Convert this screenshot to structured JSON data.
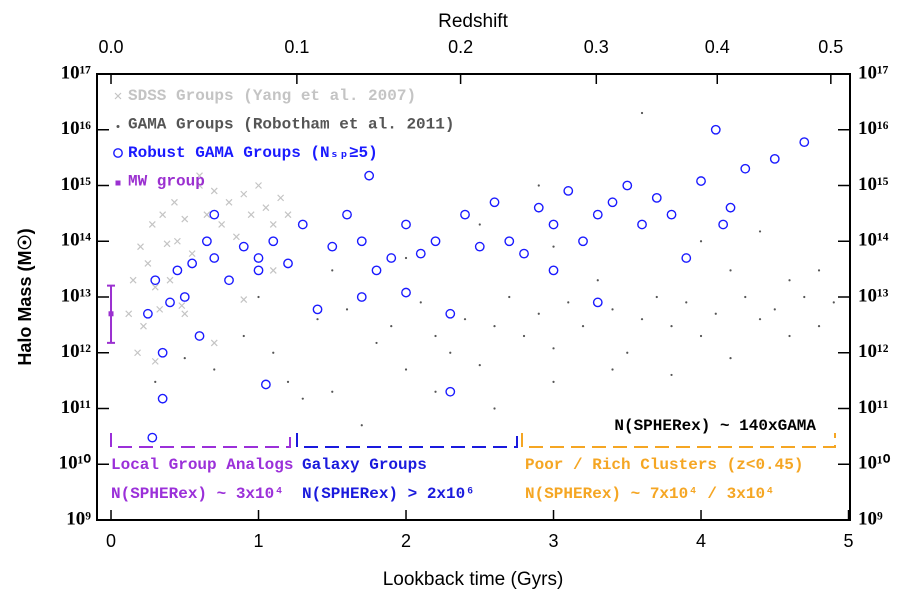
{
  "chart_data": {
    "type": "scatter",
    "x2_label": "Redshift",
    "x_label": "Lookback time (Gyrs)",
    "y_label": "Halo Mass (M☉)",
    "yscale": "log",
    "legend": "upper left",
    "xlim": [
      -0.095,
      5.01
    ],
    "ylim": [
      1000000000.0,
      1e+17
    ],
    "xticks": [
      0,
      1,
      2,
      3,
      4,
      5
    ],
    "x2ticks": [
      {
        "value": 0,
        "label": "0.0"
      },
      {
        "value": 1.26,
        "label": "0.1"
      },
      {
        "value": 2.37,
        "label": "0.2"
      },
      {
        "value": 3.29,
        "label": "0.3"
      },
      {
        "value": 4.11,
        "label": "0.4"
      },
      {
        "value": 4.88,
        "label": "0.5"
      }
    ],
    "yticks": [
      {
        "value": 1000000000.0,
        "label": "10⁹"
      },
      {
        "value": 10000000000.0,
        "label": "10¹⁰"
      },
      {
        "value": 100000000000.0,
        "label": "10¹¹"
      },
      {
        "value": 1000000000000.0,
        "label": "10¹²"
      },
      {
        "value": 10000000000000.0,
        "label": "10¹³"
      },
      {
        "value": 100000000000000.0,
        "label": "10¹⁴"
      },
      {
        "value": 1000000000000000.0,
        "label": "10¹⁵"
      },
      {
        "value": 1e+16,
        "label": "10¹⁶"
      },
      {
        "value": 1e+17,
        "label": "10¹⁷"
      }
    ],
    "series": [
      {
        "name": "SDSS Groups (Yang et al. 2007)",
        "color": "#c4c4c4",
        "marker": "cross",
        "x": [
          0.12,
          0.15,
          0.18,
          0.2,
          0.22,
          0.25,
          0.28,
          0.3,
          0.33,
          0.35,
          0.38,
          0.4,
          0.43,
          0.45,
          0.48,
          0.5,
          0.55,
          0.6,
          0.65,
          0.7,
          0.75,
          0.8,
          0.85,
          0.9,
          0.95,
          1.0,
          1.05,
          1.1,
          1.15,
          1.2,
          0.3,
          0.5,
          0.7,
          0.9,
          1.1,
          0.6
        ],
        "values": [
          5000000000000.0,
          20000000000000.0,
          1000000000000.0,
          80000000000000.0,
          3000000000000.0,
          40000000000000.0,
          200000000000000.0,
          15000000000000.0,
          6000000000000.0,
          300000000000000.0,
          90000000000000.0,
          20000000000000.0,
          500000000000000.0,
          100000000000000.0,
          7000000000000.0,
          250000000000000.0,
          60000000000000.0,
          1000000000000000.0,
          300000000000000.0,
          800000000000000.0,
          200000000000000.0,
          500000000000000.0,
          120000000000000.0,
          700000000000000.0,
          300000000000000.0,
          1000000000000000.0,
          400000000000000.0,
          200000000000000.0,
          600000000000000.0,
          300000000000000.0,
          700000000000.0,
          5000000000000.0,
          1500000000000.0,
          9000000000000.0,
          30000000000000.0,
          1500000000000000.0
        ]
      },
      {
        "name": "GAMA Groups (Robotham et al. 2011)",
        "color": "#555555",
        "marker": "dot",
        "x": [
          0.3,
          0.5,
          0.7,
          0.9,
          1.1,
          1.2,
          1.4,
          1.5,
          1.6,
          1.8,
          1.9,
          2.0,
          2.1,
          2.2,
          2.3,
          2.4,
          2.5,
          2.6,
          2.7,
          2.8,
          2.9,
          3.0,
          3.1,
          3.2,
          3.3,
          3.4,
          3.5,
          3.6,
          3.7,
          3.8,
          3.9,
          4.0,
          4.1,
          4.2,
          4.3,
          4.4,
          4.5,
          4.6,
          4.7,
          4.8,
          4.9,
          1.3,
          1.7,
          2.2,
          2.6,
          3.0,
          3.4,
          3.8,
          4.2,
          4.6,
          1.0,
          2.0,
          3.0,
          4.0,
          4.8,
          3.6,
          2.9,
          4.4,
          1.5,
          2.5
        ],
        "values": [
          300000000000.0,
          800000000000.0,
          500000000000.0,
          2000000000000.0,
          1000000000000.0,
          300000000000.0,
          4000000000000.0,
          200000000000.0,
          6000000000000.0,
          1500000000000.0,
          3000000000000.0,
          500000000000.0,
          8000000000000.0,
          2000000000000.0,
          1000000000000.0,
          4000000000000.0,
          600000000000.0,
          3000000000000.0,
          10000000000000.0,
          2000000000000.0,
          5000000000000.0,
          1200000000000.0,
          8000000000000.0,
          3000000000000.0,
          20000000000000.0,
          6000000000000.0,
          1000000000000.0,
          4000000000000.0,
          10000000000000.0,
          3000000000000.0,
          8000000000000.0,
          2000000000000.0,
          5000000000000.0,
          30000000000000.0,
          10000000000000.0,
          4000000000000.0,
          6000000000000.0,
          20000000000000.0,
          10000000000000.0,
          3000000000000.0,
          8000000000000.0,
          150000000000.0,
          50000000000.0,
          200000000000.0,
          100000000000.0,
          300000000000.0,
          500000000000.0,
          400000000000.0,
          800000000000.0,
          2000000000000.0,
          10000000000000.0,
          50000000000000.0,
          80000000000000.0,
          100000000000000.0,
          30000000000000.0,
          2e+16,
          1000000000000000.0,
          150000000000000.0,
          30000000000000.0,
          200000000000000.0
        ]
      },
      {
        "name": "Robust GAMA Groups (Nₛₚ≥5)",
        "color": "#1a1aff",
        "marker": "circle",
        "x": [
          0.25,
          0.3,
          0.35,
          0.4,
          0.45,
          0.5,
          0.55,
          0.6,
          0.65,
          0.7,
          0.8,
          0.9,
          1.0,
          1.05,
          1.1,
          1.2,
          1.3,
          1.4,
          1.5,
          1.6,
          1.7,
          1.75,
          1.8,
          1.9,
          2.0,
          2.1,
          2.2,
          2.3,
          2.4,
          2.5,
          2.6,
          2.7,
          2.8,
          2.9,
          3.0,
          3.1,
          3.2,
          3.3,
          3.4,
          3.5,
          3.6,
          3.7,
          3.8,
          3.9,
          4.0,
          4.1,
          4.2,
          4.3,
          4.5,
          4.7,
          0.28,
          0.7,
          1.7,
          2.3,
          3.3,
          4.15,
          0.35,
          1.0,
          2.0,
          3.0
        ],
        "values": [
          5000000000000.0,
          20000000000000.0,
          1000000000000.0,
          8000000000000.0,
          30000000000000.0,
          10000000000000.0,
          40000000000000.0,
          2000000000000.0,
          100000000000000.0,
          50000000000000.0,
          20000000000000.0,
          80000000000000.0,
          30000000000000.0,
          270000000000.0,
          100000000000000.0,
          40000000000000.0,
          200000000000000.0,
          6000000000000.0,
          80000000000000.0,
          300000000000000.0,
          100000000000000.0,
          1500000000000000.0,
          30000000000000.0,
          50000000000000.0,
          200000000000000.0,
          60000000000000.0,
          100000000000000.0,
          200000000000.0,
          300000000000000.0,
          80000000000000.0,
          500000000000000.0,
          100000000000000.0,
          60000000000000.0,
          400000000000000.0,
          200000000000000.0,
          800000000000000.0,
          100000000000000.0,
          300000000000000.0,
          500000000000000.0,
          1000000000000000.0,
          200000000000000.0,
          600000000000000.0,
          300000000000000.0,
          50000000000000.0,
          1200000000000000.0,
          1e+16,
          400000000000000.0,
          2000000000000000.0,
          3000000000000000.0,
          6000000000000000.0,
          30000000000.0,
          300000000000000.0,
          10000000000000.0,
          5000000000000.0,
          8000000000000.0,
          200000000000000.0,
          150000000000.0,
          50000000000000.0,
          12000000000000.0,
          30000000000000.0
        ]
      },
      {
        "name": "MW group",
        "color": "#9b30d0",
        "marker": "errorbar",
        "x": [
          0
        ],
        "values": [
          5000000000000.0
        ],
        "y_low": [
          1500000000000.0
        ],
        "y_high": [
          16000000000000.0
        ]
      }
    ],
    "annotations": [
      {
        "text": "N(SPHERex) ~ 140xGAMA",
        "color": "#000000"
      },
      {
        "text": "Local Group Analogs",
        "color": "#9b30d9"
      },
      {
        "text": "N(SPHERex) ~ 3x10⁴",
        "color": "#9b30d9"
      },
      {
        "text": "Galaxy Groups",
        "color": "#1a1add"
      },
      {
        "text": "N(SPHERex) > 2x10⁶",
        "color": "#1a1add"
      },
      {
        "text": "Poor / Rich Clusters (z<0.45)",
        "color": "#f5a623"
      },
      {
        "text": "N(SPHERex) ~ 7x10⁴ / 3x10⁴",
        "color": "#f5a623"
      }
    ]
  }
}
